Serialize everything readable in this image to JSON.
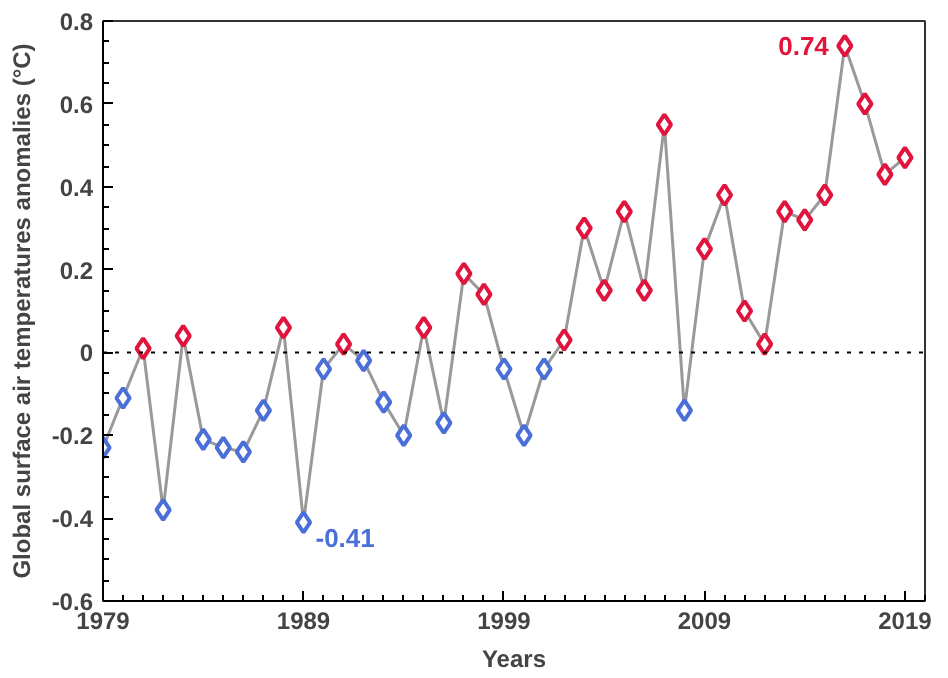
{
  "chart_data": {
    "type": "line",
    "xlabel": "Years",
    "ylabel": "Global surface air temperatures anomalies (°C)",
    "x": [
      1979,
      1980,
      1981,
      1982,
      1983,
      1984,
      1985,
      1986,
      1987,
      1988,
      1989,
      1990,
      1991,
      1992,
      1993,
      1994,
      1995,
      1996,
      1997,
      1998,
      1999,
      2000,
      2001,
      2002,
      2003,
      2004,
      2005,
      2006,
      2007,
      2008,
      2009,
      2010,
      2011,
      2012,
      2013,
      2014,
      2015,
      2016,
      2017,
      2018,
      2019
    ],
    "series": [
      {
        "color": "#999999",
        "values": [
          -0.23,
          -0.11,
          0.01,
          -0.38,
          0.04,
          -0.21,
          -0.23,
          -0.24,
          -0.14,
          0.06,
          -0.41,
          -0.04,
          0.02,
          -0.02,
          -0.12,
          -0.2,
          0.06,
          -0.17,
          0.19,
          0.14,
          -0.04,
          -0.2,
          -0.04,
          0.03,
          0.3,
          0.15,
          0.34,
          0.15,
          0.55,
          -0.14,
          0.25,
          0.38,
          0.1,
          0.02,
          0.34,
          0.32,
          0.38,
          0.74,
          0.6,
          0.43,
          0.47
        ],
        "colors": [
          "#4a6fd8",
          "#4a6fd8",
          "#e0143c",
          "#4a6fd8",
          "#e0143c",
          "#4a6fd8",
          "#4a6fd8",
          "#4a6fd8",
          "#4a6fd8",
          "#e0143c",
          "#4a6fd8",
          "#4a6fd8",
          "#e0143c",
          "#4a6fd8",
          "#4a6fd8",
          "#4a6fd8",
          "#e0143c",
          "#4a6fd8",
          "#e0143c",
          "#e0143c",
          "#4a6fd8",
          "#4a6fd8",
          "#4a6fd8",
          "#e0143c",
          "#e0143c",
          "#e0143c",
          "#e0143c",
          "#e0143c",
          "#e0143c",
          "#4a6fd8",
          "#e0143c",
          "#e0143c",
          "#e0143c",
          "#e0143c",
          "#e0143c",
          "#e0143c",
          "#e0143c",
          "#e0143c",
          "#e0143c",
          "#e0143c",
          "#e0143c"
        ]
      }
    ],
    "marker": "diamond",
    "line_style": "solid",
    "xlim": [
      1979,
      2020
    ],
    "xticks": [
      1979,
      1989,
      1999,
      2009,
      2019
    ],
    "ylim": [
      -0.6,
      0.8
    ],
    "yticks": [
      -0.6,
      -0.4,
      -0.2,
      0,
      0.2,
      0.4,
      0.6,
      0.8
    ],
    "ref_lines": [
      {
        "axis": "y",
        "value": 0,
        "color": "#000000",
        "line_style": "dotted"
      }
    ],
    "annotations": [
      {
        "text": "-0.41",
        "x": 1989,
        "y": -0.41
      },
      {
        "text": "0.74",
        "x": 2016,
        "y": 0.74
      }
    ],
    "grid": false
  }
}
